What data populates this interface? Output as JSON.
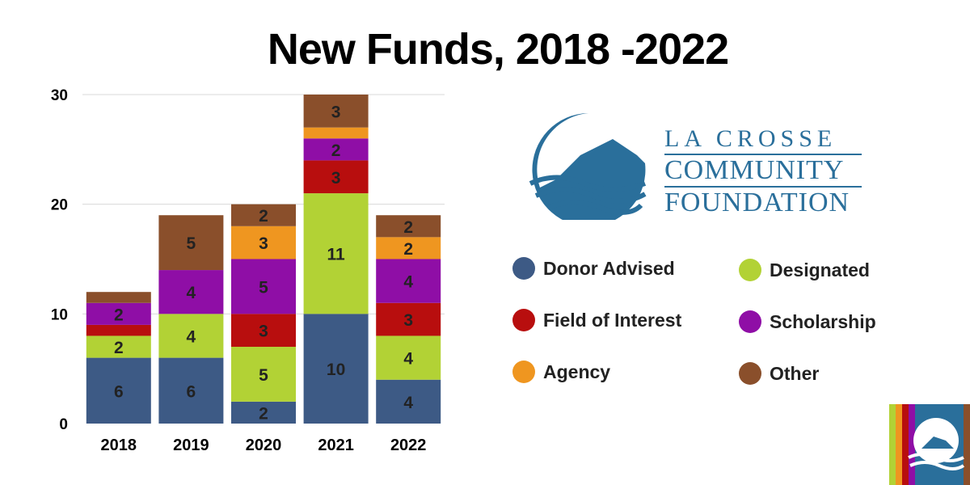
{
  "title": "New Funds, 2018 -2022",
  "logo": {
    "line1": "LA CROSSE",
    "line2": "COMMUNITY",
    "line3": "FOUNDATION"
  },
  "chart_data": {
    "type": "bar",
    "stacked": true,
    "title": "New Funds, 2018 -2022",
    "xlabel": "",
    "ylabel": "",
    "categories": [
      "2018",
      "2019",
      "2020",
      "2021",
      "2022"
    ],
    "ylim": [
      0,
      30
    ],
    "yticks": [
      0,
      10,
      20,
      30
    ],
    "grid": true,
    "legend_position": "right",
    "series": [
      {
        "name": "Donor Advised",
        "color": "#3d5a85",
        "values": [
          6,
          6,
          2,
          10,
          4
        ]
      },
      {
        "name": "Designated",
        "color": "#b2d235",
        "values": [
          2,
          4,
          5,
          11,
          4
        ]
      },
      {
        "name": "Field of Interest",
        "color": "#b80e0e",
        "values": [
          1,
          0,
          3,
          3,
          3
        ]
      },
      {
        "name": "Scholarship",
        "color": "#8f0ea6",
        "values": [
          2,
          4,
          5,
          2,
          4
        ]
      },
      {
        "name": "Agency",
        "color": "#ef9620",
        "values": [
          0,
          0,
          3,
          1,
          2
        ]
      },
      {
        "name": "Other",
        "color": "#8a4f2b",
        "values": [
          1,
          5,
          2,
          3,
          2
        ]
      }
    ],
    "data_labels": [
      [
        "6",
        "2",
        "",
        "2",
        "",
        ""
      ],
      [
        "6",
        "4",
        "",
        "4",
        "",
        "5"
      ],
      [
        "2",
        "5",
        "3",
        "5",
        "3",
        "2"
      ],
      [
        "10",
        "11",
        "3",
        "2",
        "",
        "3"
      ],
      [
        "4",
        "4",
        "3",
        "4",
        "2",
        "2"
      ]
    ]
  },
  "legend": {
    "items": [
      {
        "label": "Donor Advised",
        "color": "#3d5a85"
      },
      {
        "label": "Designated",
        "color": "#b2d235"
      },
      {
        "label": "Field of Interest",
        "color": "#b80e0e"
      },
      {
        "label": "Scholarship",
        "color": "#8f0ea6"
      },
      {
        "label": "Agency",
        "color": "#ef9620"
      },
      {
        "label": "Other",
        "color": "#8a4f2b"
      }
    ]
  }
}
